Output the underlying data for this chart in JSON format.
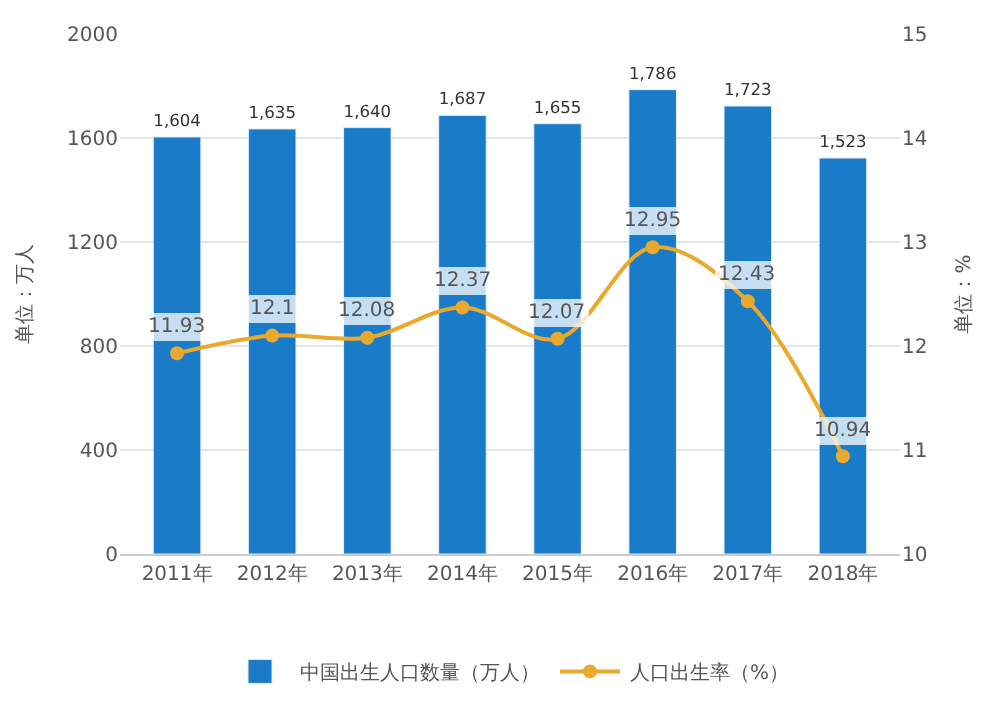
{
  "chart_data": {
    "type": "bar",
    "categories": [
      "2011年",
      "2012年",
      "2013年",
      "2014年",
      "2015年",
      "2016年",
      "2017年",
      "2018年"
    ],
    "series": [
      {
        "name": "中国出生人口数量（万人）",
        "color": "#1a7cc9",
        "values": [
          1604,
          1635,
          1640,
          1687,
          1655,
          1786,
          1723,
          1523
        ],
        "value_labels": [
          "1,604",
          "1,635",
          "1,640",
          "1,687",
          "1,655",
          "1,786",
          "1,723",
          "1,523"
        ]
      },
      {
        "name": "人口出生率（%）",
        "type": "line",
        "axis": "y2",
        "color": "#e8a92c",
        "marker": "circle",
        "values": [
          11.93,
          12.1,
          12.08,
          12.37,
          12.07,
          12.95,
          12.43,
          10.94
        ],
        "value_labels": [
          "11.93",
          "12.1",
          "12.08",
          "12.37",
          "12.07",
          "12.95",
          "12.43",
          "10.94"
        ]
      }
    ],
    "ylabel": "单位：万人",
    "y2label": "单位：%",
    "ylim": [
      0,
      2000
    ],
    "yticks": [
      0,
      400,
      800,
      1200,
      1600,
      2000
    ],
    "y2lim": [
      10,
      15
    ],
    "y2ticks": [
      10,
      11,
      12,
      13,
      14,
      15
    ],
    "grid": "y",
    "legend": "bottom"
  }
}
